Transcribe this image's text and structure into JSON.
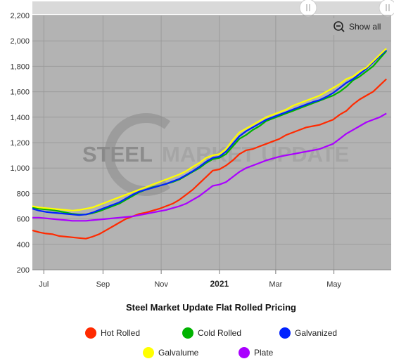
{
  "chart_data": {
    "type": "line",
    "title": "Steel Market Update Flat Rolled Pricing",
    "watermark": {
      "left": "STEEL",
      "right": "MARKET UPDATE"
    },
    "show_all_label": "Show all",
    "show_all_icon": "zoom-out-icon",
    "xlabel": "",
    "ylabel": "",
    "ylim": [
      200,
      2200
    ],
    "yticks": [
      200,
      400,
      600,
      800,
      1000,
      1200,
      1400,
      1600,
      1800,
      2000,
      2200
    ],
    "ytick_labels": [
      "200",
      "400",
      "600",
      "800",
      "1,000",
      "1,200",
      "1,400",
      "1,600",
      "1,800",
      "2,000",
      "2,200"
    ],
    "xlim": [
      "2020-06-19",
      "2021-06-30"
    ],
    "xticks": [
      {
        "date": "2020-07-01",
        "label": "Jul",
        "bold": false
      },
      {
        "date": "2020-09-01",
        "label": "Sep",
        "bold": false
      },
      {
        "date": "2020-11-01",
        "label": "Nov",
        "bold": false
      },
      {
        "date": "2021-01-01",
        "label": "2021",
        "bold": true
      },
      {
        "date": "2021-03-01",
        "label": "Mar",
        "bold": false
      },
      {
        "date": "2021-05-01",
        "label": "May",
        "bold": false
      }
    ],
    "grid": true,
    "legend_position": "bottom",
    "x": [
      "2020-06-19",
      "2020-06-26",
      "2020-07-03",
      "2020-07-10",
      "2020-07-17",
      "2020-07-24",
      "2020-07-31",
      "2020-08-07",
      "2020-08-14",
      "2020-08-21",
      "2020-08-28",
      "2020-09-04",
      "2020-09-11",
      "2020-09-18",
      "2020-09-25",
      "2020-10-02",
      "2020-10-09",
      "2020-10-16",
      "2020-10-23",
      "2020-10-30",
      "2020-11-06",
      "2020-11-13",
      "2020-11-20",
      "2020-11-27",
      "2020-12-04",
      "2020-12-11",
      "2020-12-18",
      "2020-12-25",
      "2021-01-01",
      "2021-01-08",
      "2021-01-15",
      "2021-01-22",
      "2021-01-29",
      "2021-02-05",
      "2021-02-12",
      "2021-02-19",
      "2021-02-26",
      "2021-03-05",
      "2021-03-12",
      "2021-03-19",
      "2021-03-26",
      "2021-04-02",
      "2021-04-09",
      "2021-04-16",
      "2021-04-23",
      "2021-04-30",
      "2021-05-07",
      "2021-05-14",
      "2021-05-21",
      "2021-05-28",
      "2021-06-04",
      "2021-06-11",
      "2021-06-18",
      "2021-06-25"
    ],
    "series": [
      {
        "name": "Hot Rolled",
        "color": "#ff2a00",
        "values": [
          510,
          495,
          485,
          480,
          465,
          460,
          455,
          450,
          445,
          460,
          480,
          510,
          540,
          570,
          600,
          620,
          640,
          650,
          665,
          680,
          700,
          720,
          750,
          790,
          830,
          880,
          930,
          980,
          990,
          1020,
          1060,
          1110,
          1140,
          1150,
          1170,
          1190,
          1210,
          1230,
          1260,
          1280,
          1300,
          1320,
          1330,
          1340,
          1360,
          1380,
          1420,
          1450,
          1500,
          1540,
          1570,
          1600,
          1650,
          1700
        ]
      },
      {
        "name": "Cold Rolled",
        "color": "#00b300",
        "values": [
          690,
          680,
          675,
          670,
          660,
          650,
          640,
          635,
          635,
          645,
          660,
          680,
          700,
          720,
          750,
          780,
          810,
          830,
          850,
          860,
          875,
          890,
          910,
          940,
          970,
          1000,
          1040,
          1070,
          1080,
          1110,
          1170,
          1230,
          1260,
          1300,
          1330,
          1370,
          1390,
          1410,
          1430,
          1450,
          1470,
          1490,
          1510,
          1530,
          1550,
          1570,
          1600,
          1640,
          1690,
          1720,
          1760,
          1800,
          1860,
          1920
        ]
      },
      {
        "name": "Galvanized",
        "color": "#0022ff",
        "values": [
          680,
          665,
          655,
          650,
          645,
          640,
          635,
          630,
          635,
          650,
          670,
          690,
          710,
          730,
          760,
          790,
          815,
          830,
          845,
          860,
          875,
          895,
          915,
          945,
          975,
          1010,
          1050,
          1080,
          1090,
          1130,
          1190,
          1250,
          1290,
          1320,
          1350,
          1380,
          1400,
          1420,
          1440,
          1460,
          1480,
          1500,
          1520,
          1535,
          1560,
          1590,
          1630,
          1670,
          1700,
          1740,
          1780,
          1830,
          1880,
          1930
        ]
      },
      {
        "name": "Galvalume",
        "color": "#ffff00",
        "values": [
          700,
          690,
          685,
          680,
          675,
          670,
          665,
          670,
          680,
          690,
          710,
          730,
          750,
          770,
          790,
          810,
          830,
          850,
          870,
          890,
          910,
          930,
          950,
          975,
          1010,
          1040,
          1080,
          1100,
          1110,
          1150,
          1220,
          1280,
          1310,
          1340,
          1370,
          1400,
          1420,
          1440,
          1460,
          1490,
          1510,
          1530,
          1550,
          1570,
          1600,
          1630,
          1660,
          1700,
          1720,
          1760,
          1790,
          1840,
          1890,
          1940
        ]
      },
      {
        "name": "Plate",
        "color": "#aa00ff",
        "values": [
          610,
          610,
          605,
          600,
          595,
          590,
          585,
          585,
          585,
          590,
          595,
          600,
          605,
          610,
          615,
          620,
          630,
          640,
          650,
          660,
          670,
          685,
          700,
          720,
          750,
          780,
          820,
          860,
          870,
          890,
          930,
          970,
          1000,
          1020,
          1040,
          1060,
          1075,
          1090,
          1100,
          1110,
          1120,
          1130,
          1140,
          1150,
          1170,
          1190,
          1230,
          1270,
          1300,
          1330,
          1360,
          1380,
          1400,
          1430
        ]
      }
    ]
  }
}
